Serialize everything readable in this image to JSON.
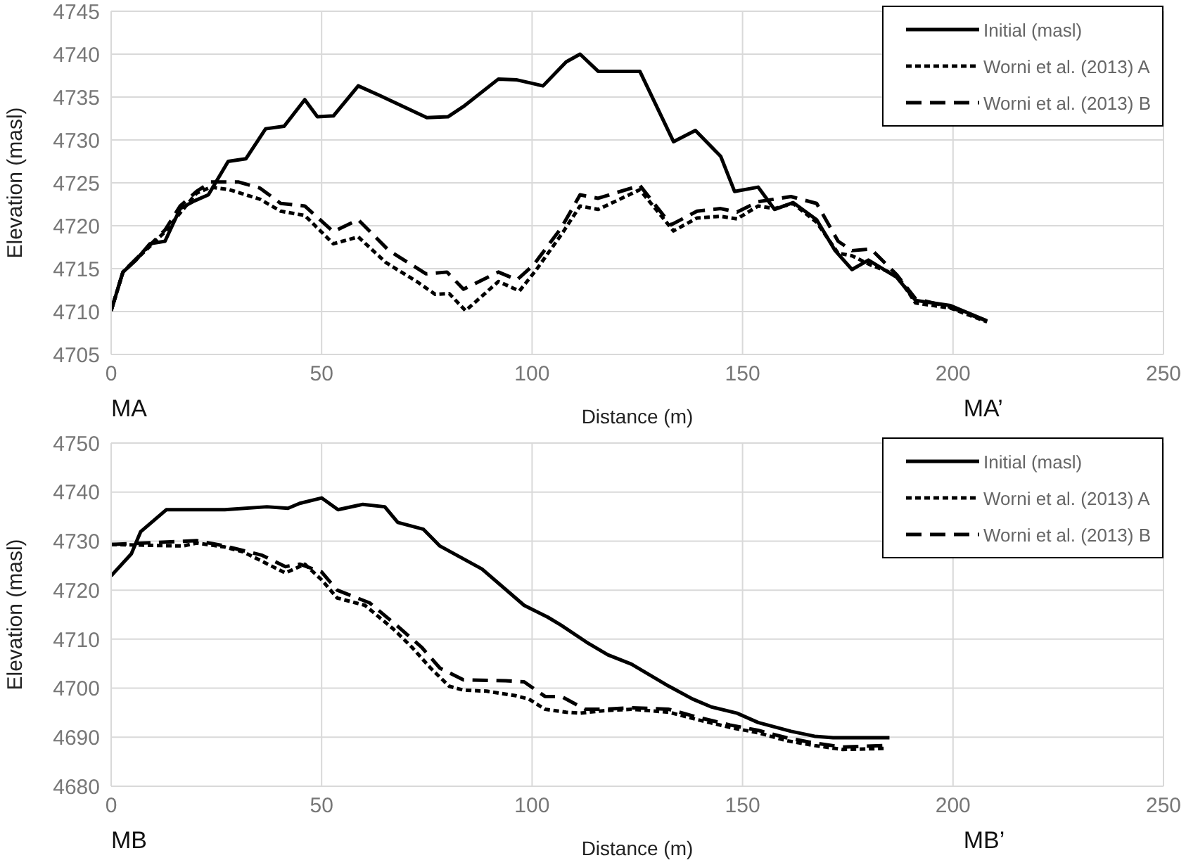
{
  "chart_data": [
    {
      "type": "line",
      "xlabel": "Distance (m)",
      "ylabel": "Elevation (masl)",
      "annotations": [
        "MA",
        "MA’"
      ],
      "xlim": [
        0,
        250
      ],
      "xticks": [
        0,
        50,
        100,
        150,
        200,
        250
      ],
      "ylim": [
        4705,
        4745
      ],
      "yticks": [
        4705,
        4710,
        4715,
        4720,
        4725,
        4730,
        4735,
        4740,
        4745
      ],
      "grid": true,
      "legend": "top right",
      "marker": "none",
      "series": [
        {
          "name": "Initial (masl)",
          "color": "#000000",
          "line_style": "solid",
          "x": [
            0,
            2.8,
            5.9,
            9.2,
            12.8,
            16.4,
            19.8,
            23.1,
            27.8,
            32,
            36.7,
            41.1,
            46,
            49,
            52.8,
            58.7,
            63.7,
            75,
            80,
            83.7,
            92,
            96.4,
            102.6,
            108.1,
            111.4,
            115.7,
            125.6,
            133.6,
            138.8,
            144.8,
            148.1,
            153.7,
            157.6,
            162,
            167.6,
            172,
            176,
            179.9,
            186.6,
            191.1,
            199.4,
            208.1
          ],
          "values": [
            4710.1,
            4714.6,
            4716,
            4717.9,
            4718.2,
            4722,
            4722.9,
            4723.6,
            4727.5,
            4727.8,
            4731.3,
            4731.6,
            4734.7,
            4732.7,
            4732.8,
            4736.3,
            4735.2,
            4732.6,
            4732.7,
            4733.9,
            4737.1,
            4737,
            4736.3,
            4739.1,
            4740,
            4738,
            4738,
            4729.8,
            4731.1,
            4728.1,
            4724,
            4724.5,
            4721.9,
            4722.7,
            4720.7,
            4717.1,
            4714.9,
            4716,
            4714,
            4711.3,
            4710.7,
            4708.9
          ]
        },
        {
          "name": "Worni et al. (2013) A",
          "color": "#000000",
          "line_style": "dotted",
          "x": [
            0,
            2.8,
            12.8,
            16.4,
            20.3,
            23.7,
            28.1,
            35.3,
            40.3,
            46,
            52.8,
            58.7,
            65.3,
            72.6,
            77,
            80.3,
            84.2,
            92,
            97,
            100.9,
            107,
            111.4,
            115.7,
            125.6,
            133.6,
            139.2,
            144.8,
            148.7,
            153.7,
            157.6,
            162,
            167.6,
            172.7,
            176,
            180.5,
            186.6,
            191.1,
            199.4,
            208.1
          ],
          "values": [
            4710.1,
            4714.6,
            4719.3,
            4721.5,
            4723.8,
            4724.5,
            4724.2,
            4723.1,
            4721.7,
            4721.2,
            4717.9,
            4718.7,
            4715.7,
            4713.5,
            4712,
            4712.1,
            4710.1,
            4713.5,
            4712.4,
            4714.8,
            4719,
            4722.3,
            4721.9,
            4724.2,
            4719.4,
            4720.9,
            4721.1,
            4720.8,
            4722.3,
            4722,
            4722.6,
            4720.4,
            4716.8,
            4716.5,
            4715.4,
            4714.3,
            4711,
            4710.4,
            4708.8
          ]
        },
        {
          "name": "Worni et al. (2013) B",
          "color": "#000000",
          "line_style": "dashed",
          "x": [
            0,
            2.8,
            12.8,
            16.4,
            20.3,
            23.7,
            30.3,
            35.3,
            40.3,
            46,
            52.8,
            58.7,
            66,
            74.8,
            79.8,
            83.7,
            92,
            96.4,
            100.3,
            107,
            111.4,
            115.7,
            125.6,
            133,
            139.2,
            144.8,
            148.7,
            153.7,
            161.5,
            167.6,
            172.7,
            176,
            180.5,
            186.6,
            191.1,
            199.4,
            208.1
          ],
          "values": [
            4710.1,
            4714.6,
            4719.5,
            4722.3,
            4724,
            4725.1,
            4725.1,
            4724.4,
            4722.6,
            4722.3,
            4719.3,
            4720.7,
            4717.1,
            4714.4,
            4714.6,
            4712.6,
            4714.6,
            4713.7,
            4715.4,
            4719.8,
            4723.6,
            4723.2,
            4724.7,
            4720.1,
            4721.7,
            4722,
            4721.6,
            4722.8,
            4723.4,
            4722.6,
            4718.2,
            4717.1,
            4717.3,
            4714.3,
            4711.5,
            4710.5,
            4708.9
          ]
        }
      ]
    },
    {
      "type": "line",
      "xlabel": "Distance (m)",
      "ylabel": "Elevation (masl)",
      "annotations": [
        "MB",
        "MB’"
      ],
      "xlim": [
        0,
        250
      ],
      "xticks": [
        0,
        50,
        100,
        150,
        200,
        250
      ],
      "ylim": [
        4680,
        4750
      ],
      "yticks": [
        4680,
        4690,
        4700,
        4710,
        4720,
        4730,
        4740,
        4750
      ],
      "grid": true,
      "legend": "top right",
      "marker": "none",
      "series": [
        {
          "name": "Initial (masl)",
          "color": "#000000",
          "line_style": "solid",
          "x": [
            0,
            4.8,
            7,
            13.1,
            27,
            37,
            42,
            44.8,
            50,
            53.9,
            59.8,
            65,
            68.1,
            74.2,
            78.1,
            88.1,
            98.1,
            103.7,
            106.8,
            112.9,
            118,
            123.6,
            132.5,
            138.1,
            142.5,
            148.7,
            153.7,
            161.5,
            167.1,
            171.5,
            184.9
          ],
          "values": [
            4722.9,
            4727.4,
            4731.9,
            4736.4,
            4736.4,
            4737,
            4736.7,
            4737.7,
            4738.8,
            4736.4,
            4737.5,
            4737,
            4733.8,
            4732.4,
            4729,
            4724.3,
            4716.9,
            4714.5,
            4712.9,
            4709.4,
            4706.8,
            4704.9,
            4700.4,
            4697.8,
            4696.2,
            4694.9,
            4693,
            4691.2,
            4690.2,
            4689.9,
            4689.9
          ]
        },
        {
          "name": "Worni et al. (2013) A",
          "color": "#000000",
          "line_style": "dotted",
          "x": [
            0,
            17,
            20.3,
            27,
            31.4,
            41.4,
            46,
            50,
            53.7,
            60.3,
            67,
            71.4,
            75.9,
            80.3,
            83.7,
            89.2,
            95.9,
            99.2,
            103.1,
            108.1,
            111.3,
            116.9,
            123.6,
            132.5,
            139.2,
            147,
            153.7,
            160.4,
            167.1,
            173.8,
            183.8
          ],
          "values": [
            4729.3,
            4729,
            4729.6,
            4728.8,
            4727.8,
            4723.5,
            4725.3,
            4722.1,
            4718.4,
            4716.9,
            4712.1,
            4708.4,
            4704.1,
            4700.4,
            4699.6,
            4699.4,
            4698.5,
            4697.8,
            4695.7,
            4695.1,
            4694.9,
            4695.4,
            4695.7,
            4695.1,
            4693.6,
            4692,
            4690.9,
            4689.3,
            4688.3,
            4687.5,
            4687.7
          ]
        },
        {
          "name": "Worni et al. (2013) B",
          "color": "#000000",
          "line_style": "dashed",
          "x": [
            0,
            20.3,
            27,
            35.9,
            41.4,
            44.8,
            50,
            53.7,
            61.4,
            68.1,
            73.7,
            78.1,
            83.7,
            93.7,
            98.1,
            103.1,
            107,
            112.6,
            116.9,
            123.6,
            132.5,
            139.2,
            147,
            153.7,
            160.4,
            167.1,
            173.8,
            183.8
          ],
          "values": [
            4729.3,
            4730.1,
            4729,
            4727.1,
            4724.8,
            4725.3,
            4723.7,
            4720,
            4717.4,
            4712.6,
            4708.4,
            4704.1,
            4701.7,
            4701.5,
            4701.3,
            4698.3,
            4698.3,
            4695.7,
            4695.7,
            4696,
            4695.7,
            4694.1,
            4692.5,
            4691.4,
            4689.9,
            4688.8,
            4688,
            4688.3
          ]
        }
      ]
    }
  ]
}
